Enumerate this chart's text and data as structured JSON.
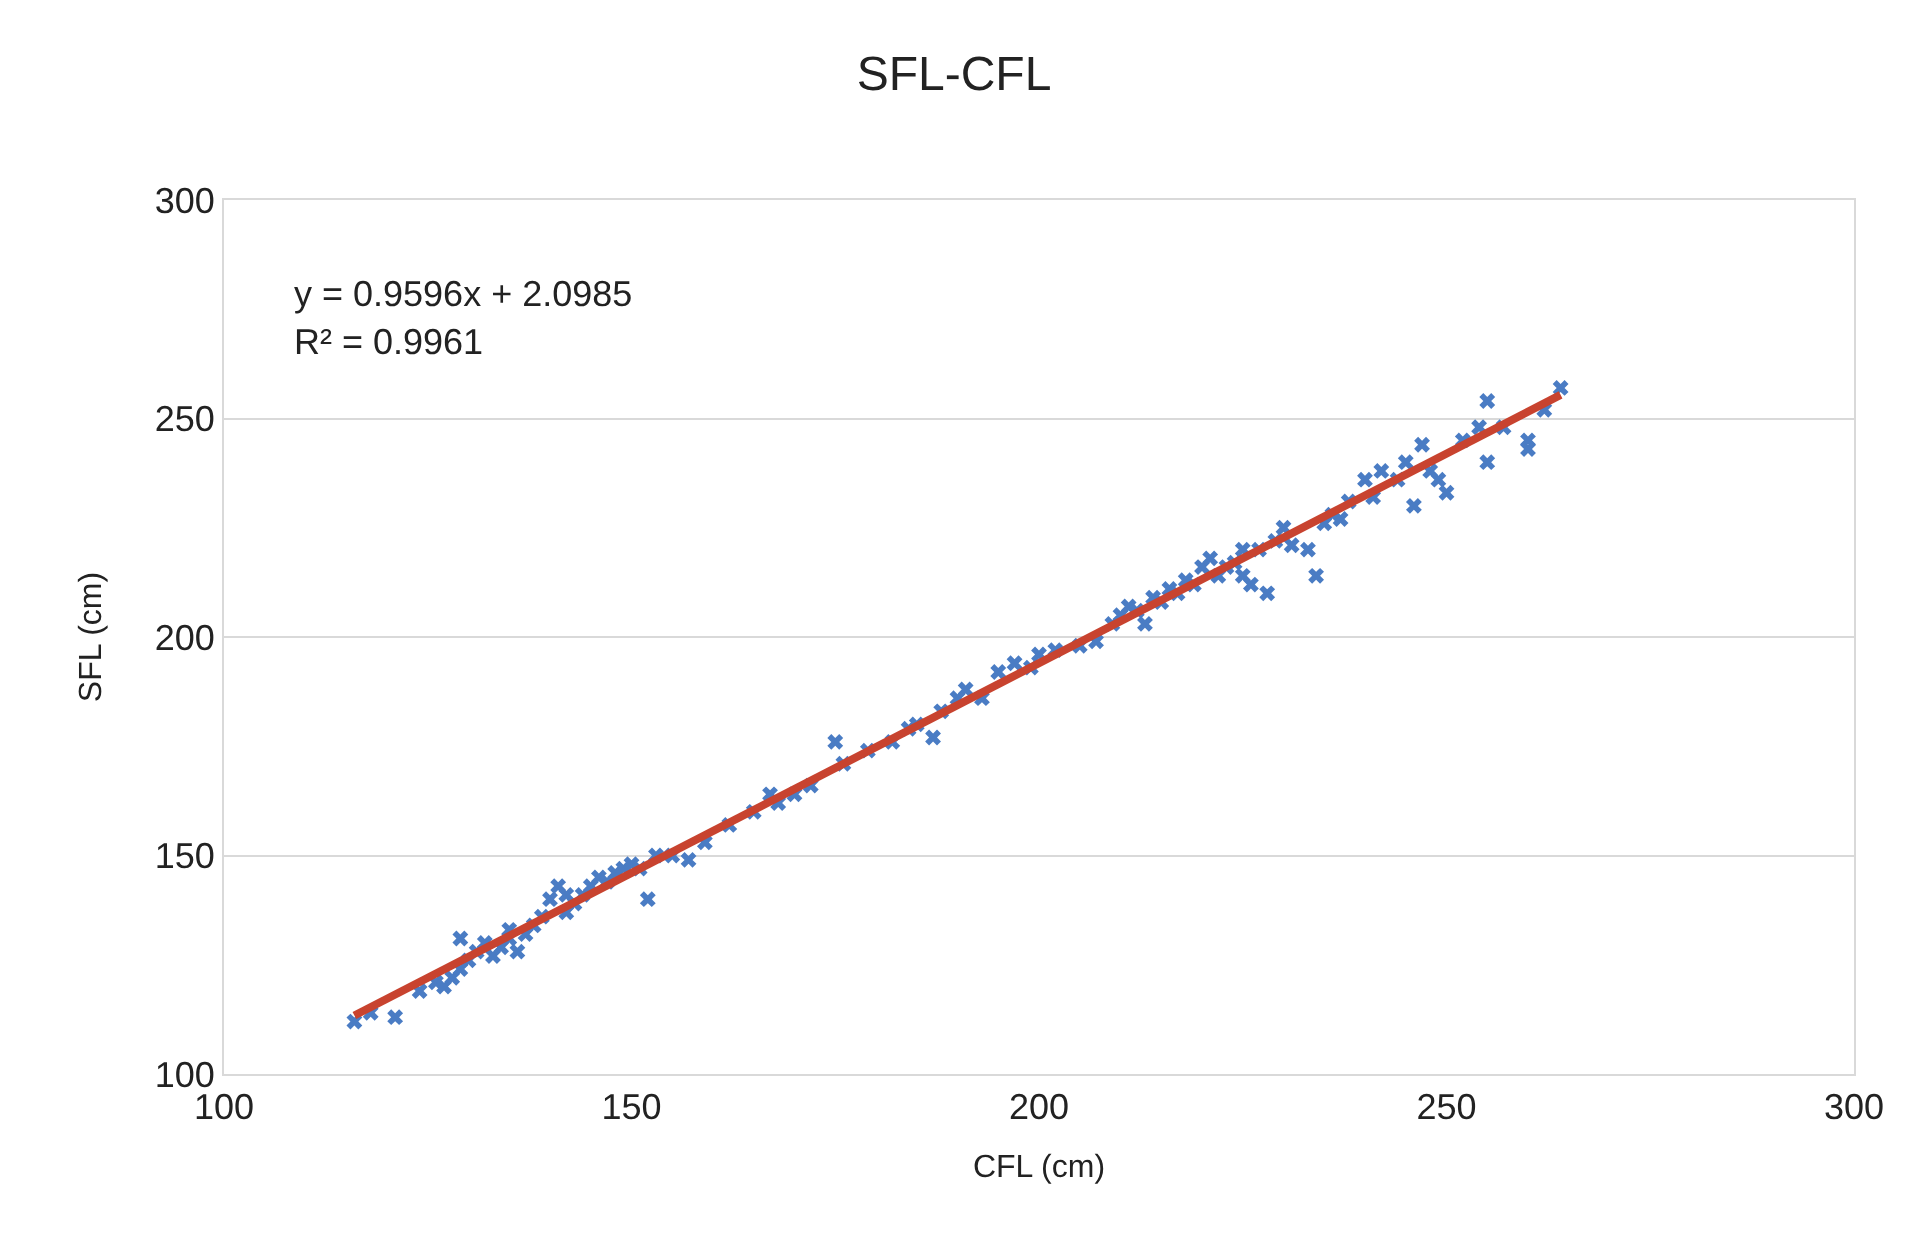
{
  "chart_data": {
    "type": "scatter",
    "title": "SFL-CFL",
    "xlabel": "CFL (cm)",
    "ylabel": "SFL (cm)",
    "xlim": [
      100,
      300
    ],
    "xticks": [
      100,
      150,
      200,
      250,
      300
    ],
    "ylim": [
      100,
      300
    ],
    "yticks": [
      100,
      150,
      200,
      250,
      300
    ],
    "grid": "y",
    "marker": "cross",
    "annotations": [
      "y = 0.9596x + 2.0985",
      "R² = 0.9961"
    ],
    "series": [
      {
        "color": "#4a7cc4",
        "x": [
          116,
          121,
          118,
          124,
          126,
          127,
          128,
          129,
          130,
          129,
          131,
          132,
          133,
          134,
          135,
          135,
          136,
          137,
          138,
          139,
          140,
          141,
          142,
          142,
          143,
          144,
          145,
          146,
          147,
          148,
          149,
          150,
          151,
          152,
          153,
          155,
          157,
          159,
          162,
          165,
          167,
          168,
          170,
          172,
          175,
          176,
          179,
          182,
          184,
          185,
          187,
          188,
          190,
          191,
          193,
          195,
          197,
          199,
          200,
          202,
          205,
          207,
          209,
          210,
          211,
          212,
          213,
          214,
          215,
          216,
          217,
          218,
          219,
          220,
          221,
          222,
          223,
          224,
          225,
          225,
          226,
          227,
          228,
          229,
          230,
          231,
          233,
          234,
          235,
          236,
          237,
          238,
          240,
          241,
          242,
          244,
          245,
          246,
          247,
          248,
          249,
          250,
          252,
          254,
          255,
          255,
          257,
          260,
          260,
          262,
          264
        ],
        "values": [
          112,
          113,
          114,
          119,
          121,
          120,
          122,
          124,
          126,
          131,
          128,
          130,
          127,
          129,
          131,
          133,
          128,
          132,
          134,
          136,
          140,
          143,
          141,
          137,
          139,
          141,
          143,
          145,
          144,
          146,
          147,
          148,
          147,
          140,
          150,
          150,
          149,
          153,
          157,
          160,
          164,
          162,
          164,
          166,
          176,
          171,
          174,
          176,
          179,
          180,
          177,
          183,
          186,
          188,
          186,
          192,
          194,
          193,
          196,
          197,
          198,
          199,
          203,
          205,
          207,
          206,
          203,
          209,
          208,
          211,
          210,
          213,
          212,
          216,
          218,
          214,
          216,
          217,
          214,
          220,
          212,
          220,
          210,
          222,
          225,
          221,
          220,
          214,
          226,
          228,
          227,
          231,
          236,
          232,
          238,
          236,
          240,
          230,
          244,
          238,
          236,
          233,
          245,
          248,
          240,
          254,
          248,
          243,
          245,
          252,
          257
        ]
      },
      {
        "type": "line",
        "color": "#c8432f",
        "marker": "none",
        "x": [
          116,
          264
        ],
        "values": [
          113.4,
          255.4
        ]
      }
    ]
  }
}
